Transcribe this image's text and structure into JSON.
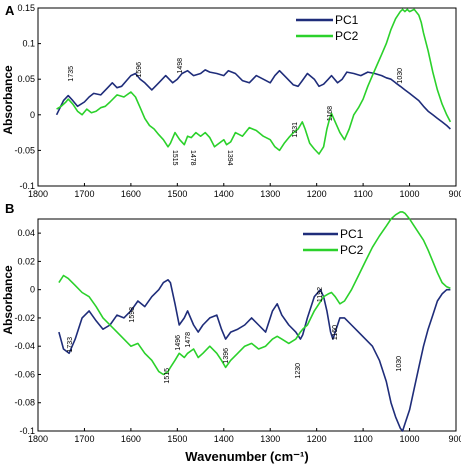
{
  "colors": {
    "pc1": "#1f2d7a",
    "pc2": "#2bd12b"
  },
  "xlabel": "Wavenumber (cm⁻¹)",
  "chart_data": [
    {
      "type": "line",
      "panel_label": "A",
      "ylabel": "Absorbance",
      "xlim": [
        1800,
        900
      ],
      "ylim": [
        -0.1,
        0.15
      ],
      "x_reversed": true,
      "xticks": [
        1800,
        1700,
        1600,
        1500,
        1400,
        1300,
        1200,
        1100,
        1000,
        900
      ],
      "yticks": [
        0.15,
        0.1,
        0.05,
        0,
        -0.05,
        -0.1
      ],
      "ytick_labels": [
        "0.15",
        "0.1",
        "0.05",
        "0",
        "-0.05",
        "-0.1"
      ],
      "legend_position": "top-right",
      "series": [
        {
          "name": "PC1",
          "color": "#1f2d7a",
          "x": [
            1760,
            1745,
            1735,
            1725,
            1715,
            1700,
            1690,
            1680,
            1665,
            1650,
            1640,
            1630,
            1620,
            1600,
            1590,
            1580,
            1570,
            1555,
            1540,
            1525,
            1510,
            1500,
            1490,
            1478,
            1465,
            1450,
            1440,
            1430,
            1415,
            1400,
            1390,
            1375,
            1360,
            1345,
            1330,
            1315,
            1300,
            1290,
            1280,
            1265,
            1250,
            1240,
            1231,
            1220,
            1205,
            1195,
            1185,
            1175,
            1168,
            1155,
            1145,
            1135,
            1120,
            1105,
            1090,
            1075,
            1060,
            1050,
            1040,
            1030,
            1020,
            1010,
            1000,
            990,
            980,
            970,
            960,
            950,
            940,
            930,
            920,
            912
          ],
          "y": [
            0.0,
            0.02,
            0.027,
            0.02,
            0.012,
            0.018,
            0.025,
            0.03,
            0.028,
            0.038,
            0.045,
            0.038,
            0.04,
            0.055,
            0.058,
            0.05,
            0.045,
            0.035,
            0.045,
            0.055,
            0.045,
            0.05,
            0.058,
            0.062,
            0.055,
            0.058,
            0.063,
            0.06,
            0.058,
            0.055,
            0.062,
            0.058,
            0.048,
            0.045,
            0.055,
            0.05,
            0.045,
            0.055,
            0.062,
            0.052,
            0.042,
            0.04,
            0.048,
            0.058,
            0.05,
            0.04,
            0.043,
            0.05,
            0.055,
            0.045,
            0.05,
            0.06,
            0.058,
            0.055,
            0.06,
            0.058,
            0.055,
            0.052,
            0.05,
            0.045,
            0.04,
            0.035,
            0.03,
            0.025,
            0.02,
            0.012,
            0.005,
            0.0,
            -0.005,
            -0.01,
            -0.015,
            -0.02
          ]
        },
        {
          "name": "PC2",
          "color": "#2bd12b",
          "x": [
            1760,
            1750,
            1740,
            1735,
            1725,
            1715,
            1705,
            1695,
            1685,
            1675,
            1665,
            1655,
            1645,
            1630,
            1615,
            1600,
            1590,
            1580,
            1570,
            1560,
            1550,
            1540,
            1530,
            1520,
            1515,
            1505,
            1495,
            1485,
            1478,
            1470,
            1460,
            1450,
            1440,
            1430,
            1420,
            1410,
            1400,
            1394,
            1385,
            1375,
            1360,
            1345,
            1330,
            1315,
            1300,
            1290,
            1280,
            1270,
            1260,
            1250,
            1240,
            1231,
            1225,
            1215,
            1205,
            1195,
            1185,
            1178,
            1172,
            1168,
            1160,
            1150,
            1140,
            1130,
            1120,
            1110,
            1100,
            1090,
            1080,
            1070,
            1060,
            1050,
            1040,
            1030,
            1020,
            1015,
            1010,
            1005,
            1000,
            990,
            980,
            975,
            970,
            960,
            950,
            940,
            930,
            920,
            912
          ],
          "y": [
            0.008,
            0.012,
            0.018,
            0.022,
            0.015,
            0.005,
            0.0,
            0.008,
            0.003,
            0.005,
            0.01,
            0.012,
            0.018,
            0.028,
            0.025,
            0.032,
            0.025,
            0.01,
            -0.005,
            -0.015,
            -0.02,
            -0.028,
            -0.035,
            -0.045,
            -0.04,
            -0.025,
            -0.035,
            -0.042,
            -0.03,
            -0.032,
            -0.025,
            -0.03,
            -0.025,
            -0.032,
            -0.045,
            -0.04,
            -0.035,
            -0.042,
            -0.038,
            -0.025,
            -0.03,
            -0.018,
            -0.022,
            -0.03,
            -0.035,
            -0.045,
            -0.05,
            -0.04,
            -0.032,
            -0.025,
            -0.02,
            -0.01,
            -0.02,
            -0.04,
            -0.048,
            -0.055,
            -0.045,
            -0.02,
            -0.005,
            0.002,
            -0.01,
            -0.025,
            -0.035,
            -0.02,
            0.0,
            0.01,
            0.022,
            0.04,
            0.055,
            0.07,
            0.085,
            0.1,
            0.12,
            0.135,
            0.145,
            0.148,
            0.145,
            0.148,
            0.145,
            0.148,
            0.14,
            0.13,
            0.115,
            0.09,
            0.06,
            0.035,
            0.015,
            0.0,
            -0.01
          ]
        }
      ],
      "annotations": [
        "1735",
        "1596",
        "1498",
        "1515",
        "1478",
        "1394",
        "1231",
        "1168",
        "1030"
      ]
    },
    {
      "type": "line",
      "panel_label": "B",
      "ylabel": "Absorbance",
      "xlabel": "Wavenumber (cm⁻¹)",
      "xlim": [
        1800,
        900
      ],
      "ylim": [
        -0.1,
        0.05
      ],
      "x_reversed": true,
      "xticks": [
        1800,
        1700,
        1600,
        1500,
        1400,
        1300,
        1200,
        1100,
        1000,
        900
      ],
      "yticks": [
        0.04,
        0.02,
        0,
        -0.02,
        -0.04,
        -0.06,
        -0.08,
        -0.1
      ],
      "ytick_labels": [
        "0.04",
        "0.02",
        "0",
        "-0.02",
        "-0.04",
        "-0.06",
        "-0.08",
        "-0.1"
      ],
      "legend_position": "top-right",
      "series": [
        {
          "name": "PC1",
          "color": "#1f2d7a",
          "x": [
            1755,
            1745,
            1733,
            1720,
            1705,
            1690,
            1675,
            1660,
            1645,
            1630,
            1615,
            1600,
            1585,
            1570,
            1555,
            1540,
            1530,
            1520,
            1515,
            1505,
            1496,
            1485,
            1478,
            1465,
            1455,
            1445,
            1430,
            1415,
            1405,
            1396,
            1385,
            1370,
            1355,
            1340,
            1325,
            1310,
            1295,
            1285,
            1275,
            1260,
            1245,
            1235,
            1230,
            1220,
            1205,
            1192,
            1185,
            1178,
            1170,
            1165,
            1160,
            1150,
            1140,
            1125,
            1110,
            1095,
            1080,
            1065,
            1050,
            1040,
            1030,
            1020,
            1015,
            1010,
            1000,
            990,
            980,
            970,
            960,
            950,
            940,
            930,
            920,
            912
          ],
          "y": [
            -0.03,
            -0.042,
            -0.045,
            -0.035,
            -0.02,
            -0.015,
            -0.022,
            -0.028,
            -0.025,
            -0.018,
            -0.02,
            -0.015,
            -0.008,
            -0.012,
            -0.005,
            0.0,
            0.005,
            0.007,
            0.005,
            -0.01,
            -0.025,
            -0.02,
            -0.015,
            -0.025,
            -0.03,
            -0.025,
            -0.02,
            -0.018,
            -0.028,
            -0.035,
            -0.03,
            -0.028,
            -0.025,
            -0.02,
            -0.025,
            -0.03,
            -0.015,
            -0.01,
            -0.018,
            -0.025,
            -0.03,
            -0.035,
            -0.032,
            -0.02,
            -0.005,
            0.0,
            -0.005,
            -0.015,
            -0.03,
            -0.035,
            -0.03,
            -0.02,
            -0.02,
            -0.025,
            -0.03,
            -0.035,
            -0.04,
            -0.05,
            -0.065,
            -0.08,
            -0.09,
            -0.098,
            -0.1,
            -0.095,
            -0.085,
            -0.07,
            -0.055,
            -0.04,
            -0.028,
            -0.018,
            -0.008,
            -0.003,
            0.0,
            0.0
          ]
        },
        {
          "name": "PC2",
          "color": "#2bd12b",
          "x": [
            1755,
            1745,
            1735,
            1720,
            1705,
            1690,
            1675,
            1660,
            1645,
            1630,
            1615,
            1600,
            1585,
            1570,
            1555,
            1540,
            1530,
            1520,
            1515,
            1505,
            1496,
            1485,
            1478,
            1465,
            1455,
            1445,
            1430,
            1415,
            1405,
            1396,
            1385,
            1370,
            1355,
            1340,
            1325,
            1310,
            1295,
            1285,
            1275,
            1260,
            1245,
            1235,
            1230,
            1220,
            1205,
            1195,
            1185,
            1175,
            1168,
            1160,
            1150,
            1140,
            1125,
            1110,
            1095,
            1080,
            1065,
            1050,
            1040,
            1030,
            1020,
            1015,
            1010,
            1000,
            990,
            980,
            970,
            960,
            950,
            940,
            930,
            920,
            912
          ],
          "y": [
            0.005,
            0.01,
            0.008,
            0.003,
            -0.002,
            -0.005,
            -0.012,
            -0.02,
            -0.025,
            -0.03,
            -0.035,
            -0.04,
            -0.038,
            -0.045,
            -0.05,
            -0.058,
            -0.06,
            -0.058,
            -0.055,
            -0.05,
            -0.045,
            -0.048,
            -0.045,
            -0.042,
            -0.048,
            -0.045,
            -0.04,
            -0.045,
            -0.05,
            -0.055,
            -0.05,
            -0.045,
            -0.04,
            -0.038,
            -0.042,
            -0.04,
            -0.035,
            -0.033,
            -0.035,
            -0.038,
            -0.035,
            -0.03,
            -0.028,
            -0.025,
            -0.015,
            -0.01,
            -0.005,
            -0.003,
            -0.002,
            -0.005,
            -0.01,
            -0.008,
            0.0,
            0.01,
            0.02,
            0.03,
            0.038,
            0.045,
            0.05,
            0.053,
            0.055,
            0.055,
            0.054,
            0.05,
            0.045,
            0.04,
            0.035,
            0.028,
            0.02,
            0.012,
            0.005,
            0.002,
            0.001
          ]
        }
      ],
      "annotations": [
        "1733",
        "1598",
        "1515",
        "1496",
        "1478",
        "1396",
        "1230",
        "1192",
        "1160",
        "1030"
      ]
    }
  ]
}
